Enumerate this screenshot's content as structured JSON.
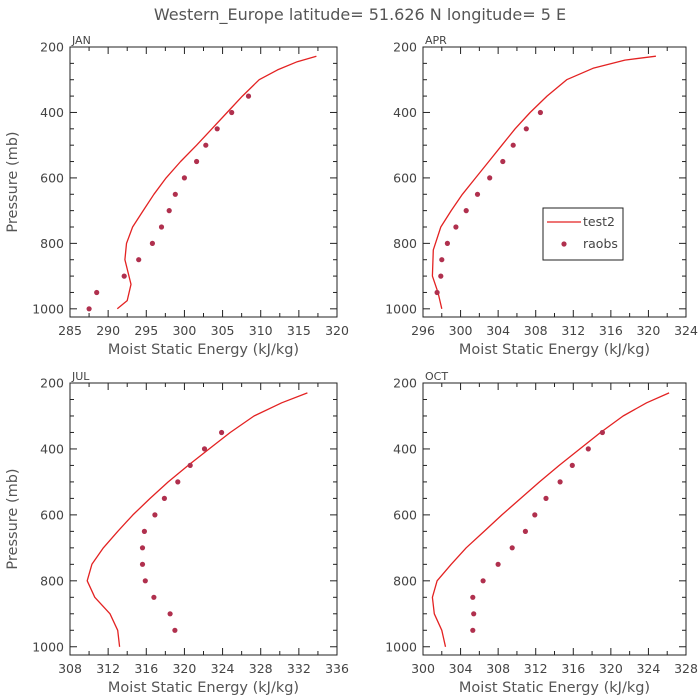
{
  "figure": {
    "title": "Western_Europe  latitude= 51.626 N longitude= 5 E",
    "line_color": "#e32222",
    "marker_color": "#b0304e"
  },
  "legend": {
    "model_label": "test2",
    "obs_label": "raobs"
  },
  "chart_data": [
    {
      "type": "line",
      "panel": "JAN",
      "xlabel": "Moist Static Energy (kJ/kg)",
      "ylabel": "Pressure (mb)",
      "xlim": [
        285,
        320
      ],
      "xticks": [
        "285",
        "290",
        "295",
        "300",
        "305",
        "310",
        "315",
        "320"
      ],
      "ylim": [
        1025,
        200
      ],
      "yticks": [
        "200",
        "400",
        "600",
        "800",
        "1000"
      ],
      "grid": false,
      "series": [
        {
          "name": "test2",
          "style": "line",
          "x": [
            291.2,
            292.5,
            293.0,
            292.2,
            292.4,
            293.2,
            294.6,
            296.0,
            297.6,
            299.5,
            301.6,
            303.6,
            305.6,
            307.6,
            309.8,
            312.2,
            314.8,
            317.3
          ],
          "y": [
            1000,
            975,
            925,
            850,
            800,
            750,
            700,
            650,
            600,
            550,
            500,
            450,
            400,
            350,
            300,
            270,
            245,
            228
          ]
        },
        {
          "name": "raobs",
          "style": "markers",
          "x": [
            287.5,
            288.5,
            292.1,
            294.0,
            295.8,
            297.0,
            298.0,
            298.8,
            300.0,
            301.6,
            302.8,
            304.3,
            306.2,
            308.4
          ],
          "y": [
            1000,
            950,
            900,
            850,
            800,
            750,
            700,
            650,
            600,
            550,
            500,
            450,
            400,
            350
          ]
        }
      ]
    },
    {
      "type": "line",
      "panel": "APR",
      "xlabel": "Moist Static Energy (kJ/kg)",
      "ylabel": "",
      "xlim": [
        296,
        324
      ],
      "xticks": [
        "296",
        "300",
        "304",
        "308",
        "312",
        "316",
        "320",
        "324"
      ],
      "ylim": [
        1025,
        200
      ],
      "yticks": [
        "200",
        "400",
        "600",
        "800",
        "1000"
      ],
      "grid": false,
      "legend_position": "right",
      "series": [
        {
          "name": "test2",
          "style": "line",
          "x": [
            298.0,
            297.6,
            297.0,
            297.1,
            297.9,
            299.0,
            300.2,
            301.6,
            303.0,
            304.4,
            305.8,
            307.4,
            309.2,
            311.3,
            314.1,
            317.5,
            320.8
          ],
          "y": [
            1000,
            950,
            900,
            820,
            750,
            700,
            650,
            600,
            550,
            500,
            450,
            400,
            350,
            300,
            265,
            240,
            228
          ]
        },
        {
          "name": "raobs",
          "style": "markers",
          "x": [
            297.5,
            297.9,
            298.0,
            298.6,
            299.5,
            300.6,
            301.8,
            303.1,
            304.5,
            305.6,
            307.0,
            308.5
          ],
          "y": [
            950,
            900,
            850,
            800,
            750,
            700,
            650,
            600,
            550,
            500,
            450,
            400
          ]
        }
      ]
    },
    {
      "type": "line",
      "panel": "JUL",
      "xlabel": "Moist Static Energy (kJ/kg)",
      "ylabel": "Pressure (mb)",
      "xlim": [
        308,
        336
      ],
      "xticks": [
        "308",
        "312",
        "316",
        "320",
        "324",
        "328",
        "332",
        "336"
      ],
      "ylim": [
        1025,
        200
      ],
      "yticks": [
        "200",
        "400",
        "600",
        "800",
        "1000"
      ],
      "grid": false,
      "series": [
        {
          "name": "test2",
          "style": "line",
          "x": [
            313.2,
            313.0,
            312.2,
            310.6,
            309.8,
            310.3,
            311.5,
            313.0,
            314.6,
            316.4,
            318.3,
            320.4,
            322.6,
            324.8,
            327.3,
            330.2,
            332.9
          ],
          "y": [
            1000,
            950,
            900,
            850,
            800,
            750,
            700,
            650,
            600,
            550,
            500,
            450,
            400,
            350,
            300,
            260,
            230
          ]
        },
        {
          "name": "raobs",
          "style": "markers",
          "x": [
            319.0,
            318.5,
            316.8,
            315.9,
            315.6,
            315.6,
            315.8,
            316.9,
            317.9,
            319.3,
            320.6,
            322.1,
            323.9
          ],
          "y": [
            950,
            900,
            850,
            800,
            750,
            700,
            650,
            600,
            550,
            500,
            450,
            400,
            350
          ]
        }
      ]
    },
    {
      "type": "line",
      "panel": "OCT",
      "xlabel": "Moist Static Energy (kJ/kg)",
      "ylabel": "",
      "xlim": [
        300,
        328
      ],
      "xticks": [
        "300",
        "304",
        "308",
        "312",
        "316",
        "320",
        "324",
        "328"
      ],
      "ylim": [
        1025,
        200
      ],
      "yticks": [
        "200",
        "400",
        "600",
        "800",
        "1000"
      ],
      "grid": false,
      "series": [
        {
          "name": "test2",
          "style": "line",
          "x": [
            302.4,
            302.0,
            301.2,
            301.0,
            301.5,
            303.0,
            304.6,
            306.5,
            308.4,
            310.4,
            312.4,
            314.5,
            316.7,
            318.9,
            321.3,
            323.8,
            326.2
          ],
          "y": [
            1000,
            950,
            900,
            850,
            800,
            750,
            700,
            650,
            600,
            550,
            500,
            450,
            400,
            350,
            300,
            260,
            230
          ]
        },
        {
          "name": "raobs",
          "style": "markers",
          "x": [
            305.3,
            305.4,
            305.3,
            306.4,
            308.0,
            309.5,
            310.9,
            311.9,
            313.1,
            314.6,
            315.9,
            317.6,
            319.1
          ],
          "y": [
            950,
            900,
            850,
            800,
            750,
            700,
            650,
            600,
            550,
            500,
            450,
            400,
            350
          ]
        }
      ]
    }
  ]
}
